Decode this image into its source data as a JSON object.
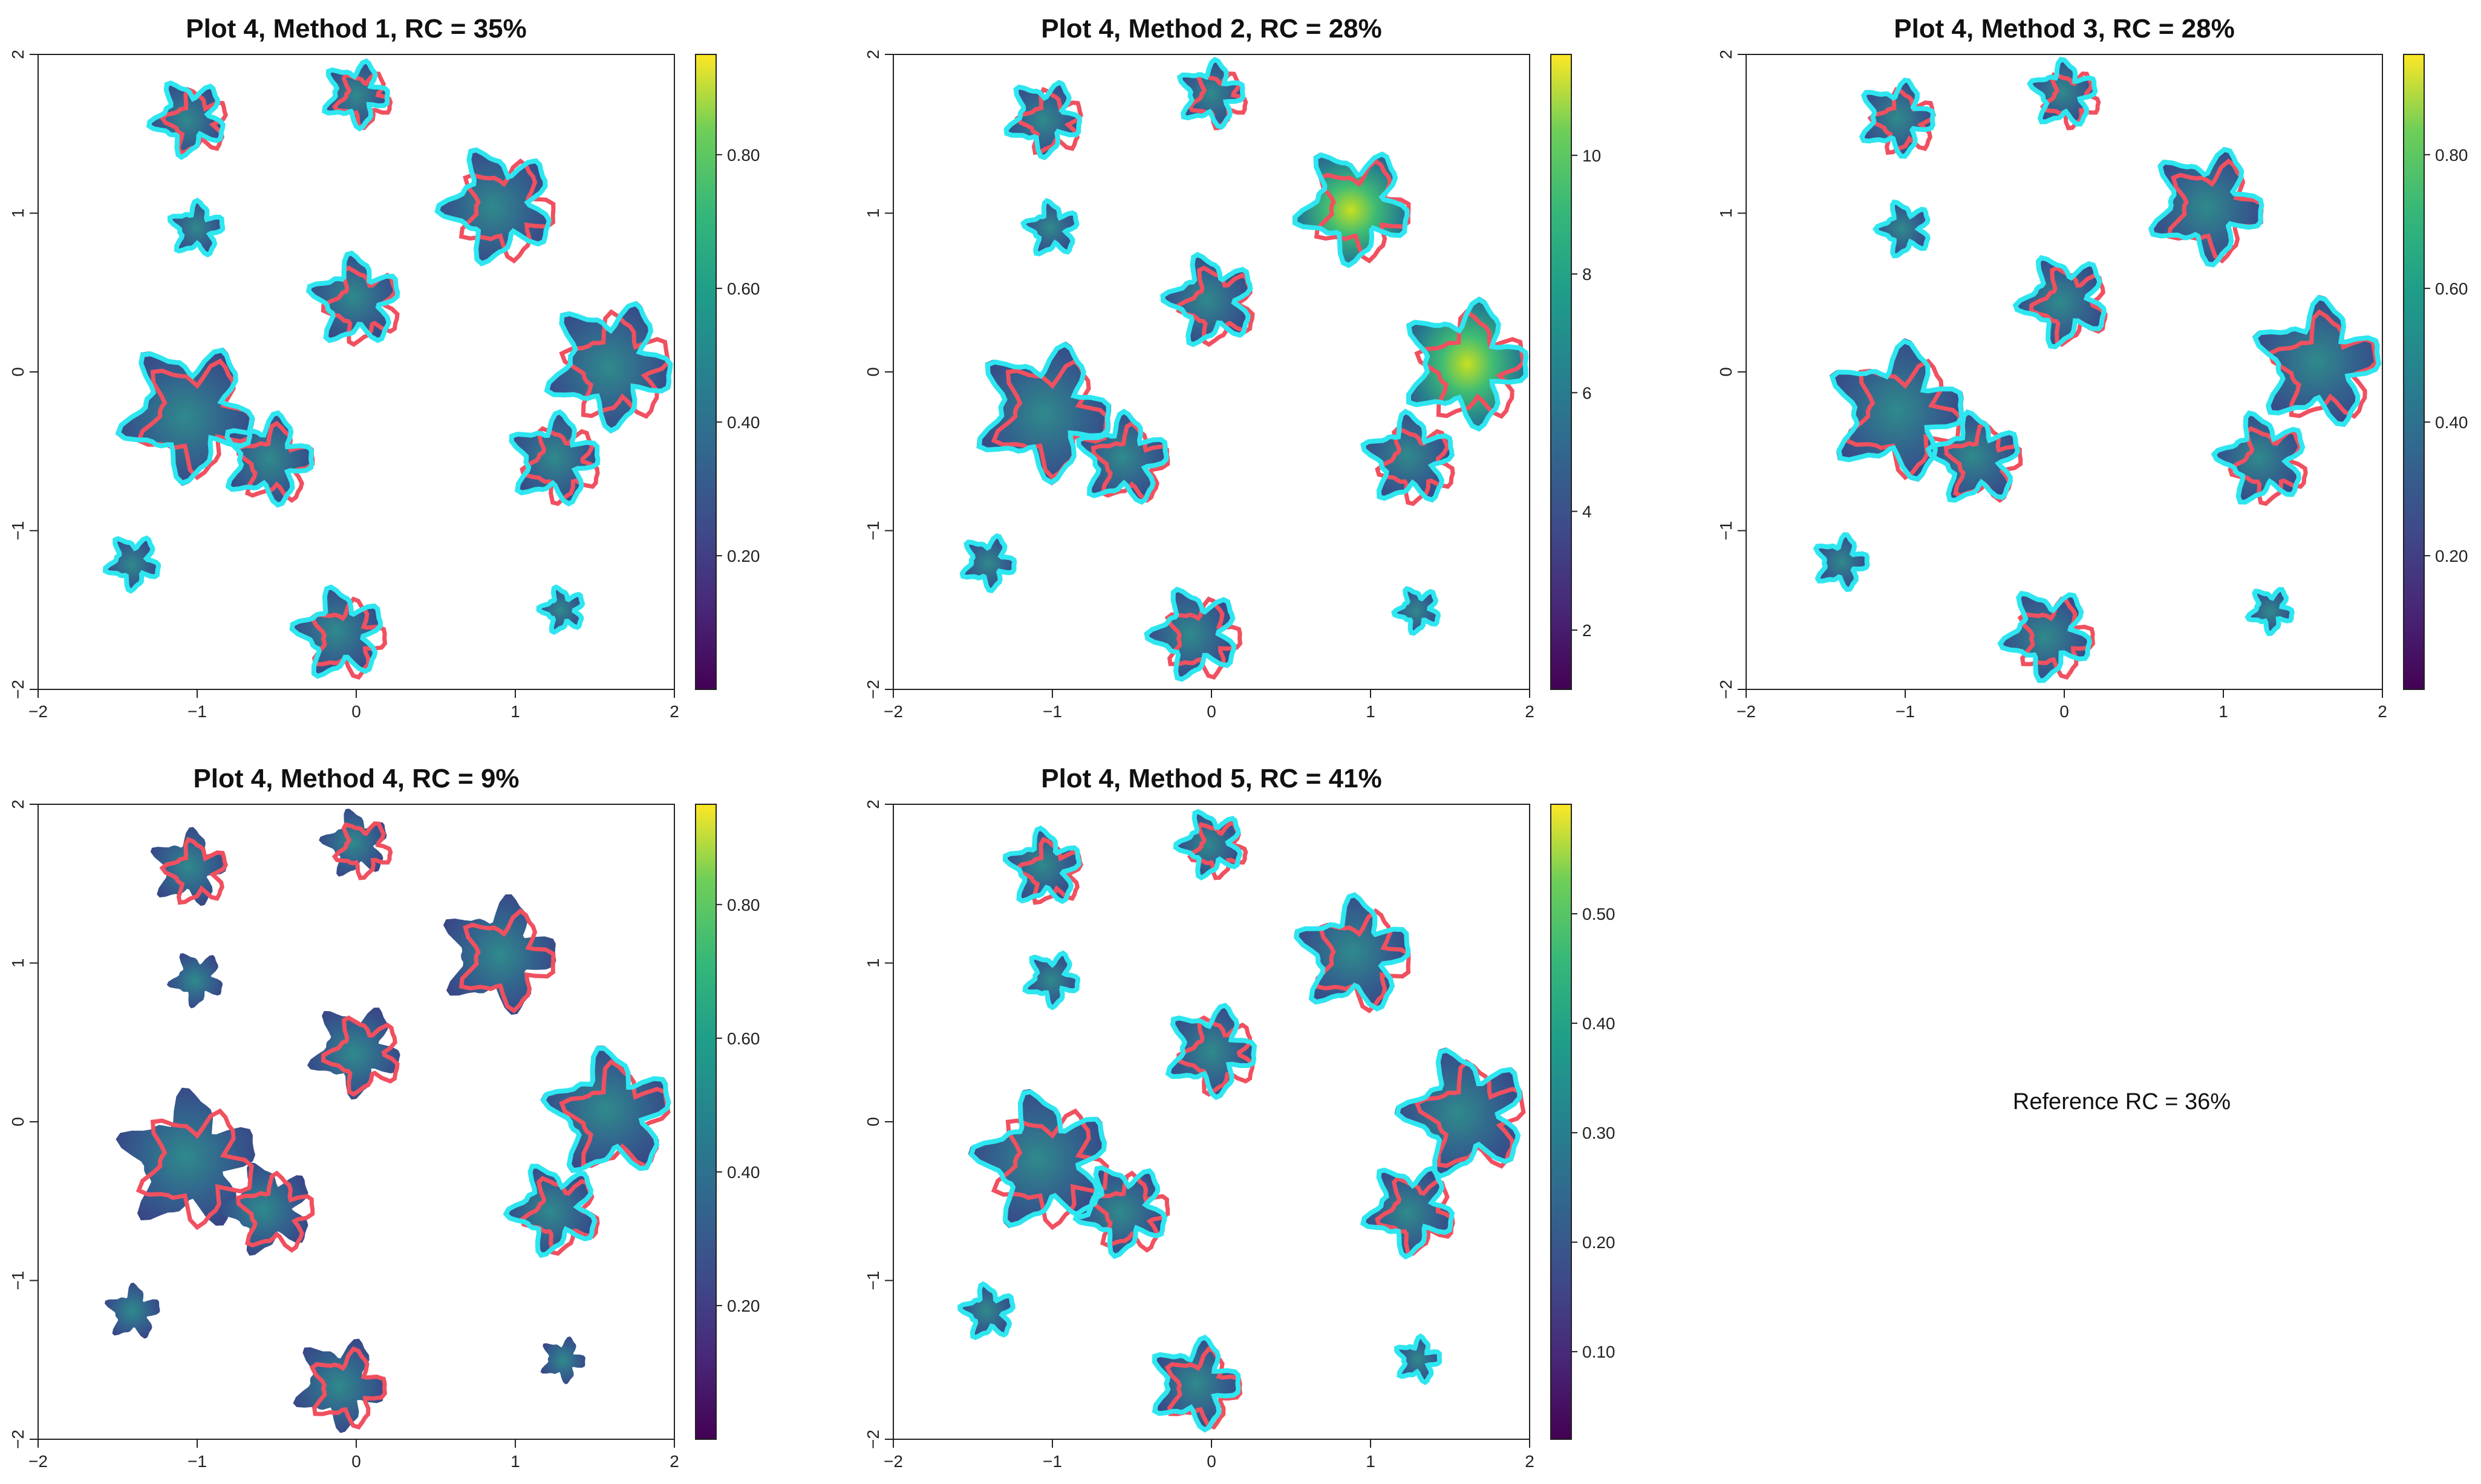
{
  "figure": {
    "reference_label": "Reference RC = 36%"
  },
  "chart_data": [
    {
      "type": "heatmap",
      "title": "Plot 4, Method 1, RC = 35%",
      "x_ticks": [
        "−2",
        "−1",
        "0",
        "1",
        "2"
      ],
      "y_ticks": [
        "−2",
        "−1",
        "0",
        "1",
        "2"
      ],
      "xlim": [
        -2,
        2
      ],
      "ylim": [
        -2,
        2
      ],
      "colorbar": {
        "min": 0.0,
        "max": 0.95,
        "ticks": [
          "0.20",
          "0.40",
          "0.60",
          "0.80"
        ],
        "tick_values": [
          0.2,
          0.4,
          0.6,
          0.8
        ]
      },
      "outlines": {
        "reference": "#f0505f",
        "predicted": "#2ee6f0"
      },
      "has_predicted_outline": true
    },
    {
      "type": "heatmap",
      "title": "Plot 4, Method 2, RC = 28%",
      "x_ticks": [
        "−2",
        "−1",
        "0",
        "1",
        "2"
      ],
      "y_ticks": [
        "−2",
        "−1",
        "0",
        "1",
        "2"
      ],
      "xlim": [
        -2,
        2
      ],
      "ylim": [
        -2,
        2
      ],
      "colorbar": {
        "min": 1.0,
        "max": 11.7,
        "ticks": [
          "2",
          "4",
          "6",
          "8",
          "10"
        ],
        "tick_values": [
          2,
          4,
          6,
          8,
          10
        ]
      },
      "outlines": {
        "reference": "#f0505f",
        "predicted": "#2ee6f0"
      },
      "has_predicted_outline": true
    },
    {
      "type": "heatmap",
      "title": "Plot 4, Method 3, RC = 28%",
      "x_ticks": [
        "−2",
        "−1",
        "0",
        "1",
        "2"
      ],
      "y_ticks": [
        "−2",
        "−1",
        "0",
        "1",
        "2"
      ],
      "xlim": [
        -2,
        2
      ],
      "ylim": [
        -2,
        2
      ],
      "colorbar": {
        "min": 0.0,
        "max": 0.95,
        "ticks": [
          "0.20",
          "0.40",
          "0.60",
          "0.80"
        ],
        "tick_values": [
          0.2,
          0.4,
          0.6,
          0.8
        ]
      },
      "outlines": {
        "reference": "#f0505f",
        "predicted": "#2ee6f0"
      },
      "has_predicted_outline": true
    },
    {
      "type": "heatmap",
      "title": "Plot 4, Method 4, RC = 9%",
      "x_ticks": [
        "−2",
        "−1",
        "0",
        "1",
        "2"
      ],
      "y_ticks": [
        "−2",
        "−1",
        "0",
        "1",
        "2"
      ],
      "xlim": [
        -2,
        2
      ],
      "ylim": [
        -2,
        2
      ],
      "colorbar": {
        "min": 0.0,
        "max": 0.95,
        "ticks": [
          "0.20",
          "0.40",
          "0.60",
          "0.80"
        ],
        "tick_values": [
          0.2,
          0.4,
          0.6,
          0.8
        ]
      },
      "outlines": {
        "reference": "#f0505f",
        "predicted": "#2ee6f0"
      },
      "has_predicted_outline": true
    },
    {
      "type": "heatmap",
      "title": "Plot 4, Method 5, RC = 41%",
      "x_ticks": [
        "−2",
        "−1",
        "0",
        "1",
        "2"
      ],
      "y_ticks": [
        "−2",
        "−1",
        "0",
        "1",
        "2"
      ],
      "xlim": [
        -2,
        2
      ],
      "ylim": [
        -2,
        2
      ],
      "colorbar": {
        "min": 0.02,
        "max": 0.6,
        "ticks": [
          "0.10",
          "0.20",
          "0.30",
          "0.40",
          "0.50"
        ],
        "tick_values": [
          0.1,
          0.2,
          0.3,
          0.4,
          0.5
        ]
      },
      "outlines": {
        "reference": "#f0505f",
        "predicted": "#2ee6f0"
      },
      "has_predicted_outline": true
    }
  ]
}
